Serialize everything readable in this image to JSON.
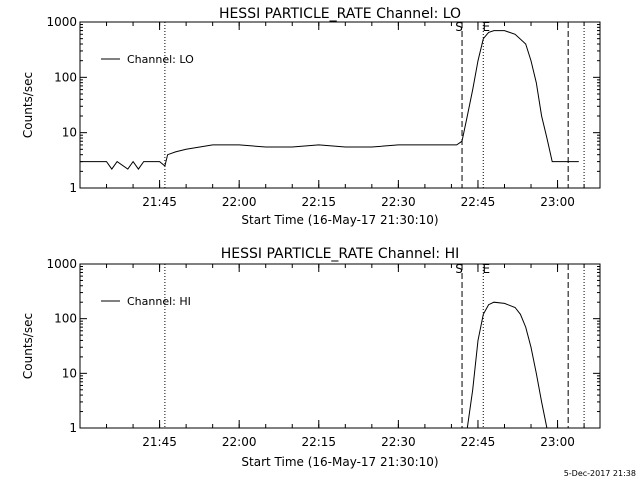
{
  "footer": {
    "stamp": "5-Dec-2017 21:38"
  },
  "chart_data": [
    {
      "type": "line",
      "title": "HESSI PARTICLE_RATE Channel: LO",
      "xlabel": "Start Time (16-May-17 21:30:10)",
      "ylabel": "Counts/sec",
      "yscale": "log",
      "ylim": [
        1,
        1000
      ],
      "yticks": [
        "1",
        "10",
        "100",
        "1000"
      ],
      "xlim": [
        "21:30",
        "23:08"
      ],
      "xticks": [
        "21:45",
        "22:00",
        "22:15",
        "22:30",
        "22:45",
        "23:00"
      ],
      "legend": {
        "entry": "Channel: LO",
        "placement": "top-left"
      },
      "markers": [
        {
          "label": "S",
          "time": "22:42",
          "style": "dashed"
        },
        {
          "label": "E",
          "time": "22:46",
          "style": "dotted"
        },
        {
          "label": "",
          "time": "23:02",
          "style": "dashed"
        },
        {
          "label": "",
          "time": "23:05",
          "style": "dotted"
        }
      ],
      "lines": [
        {
          "time": "21:46",
          "style": "dotted"
        }
      ],
      "series": [
        {
          "x": [
            "21:30",
            "21:33",
            "21:35",
            "21:36",
            "21:37",
            "21:39",
            "21:40",
            "21:41",
            "21:42",
            "21:43",
            "21:44",
            "21:45",
            "21:46",
            "21:46.5",
            "21:48",
            "21:50",
            "21:55",
            "22:00",
            "22:05",
            "22:10",
            "22:15",
            "22:20",
            "22:25",
            "22:30",
            "22:35",
            "22:38",
            "22:40",
            "22:41",
            "22:42",
            "22:43",
            "22:44",
            "22:45",
            "22:46",
            "22:47",
            "22:48",
            "22:50",
            "22:52",
            "22:54",
            "22:55",
            "22:56",
            "22:57",
            "22:58",
            "22:59",
            "23:00",
            "23:01",
            "23:02",
            "23:03",
            "23:04"
          ],
          "y": [
            3,
            3,
            3,
            2.2,
            3,
            2.2,
            3,
            2.2,
            3,
            3,
            3,
            3,
            2.5,
            4,
            4.5,
            5,
            6,
            6,
            5.5,
            5.5,
            6,
            5.5,
            5.5,
            6,
            6,
            6,
            6,
            6,
            7,
            20,
            60,
            200,
            500,
            650,
            700,
            700,
            600,
            400,
            200,
            80,
            20,
            8,
            3,
            3,
            3,
            3,
            3,
            3
          ]
        }
      ]
    },
    {
      "type": "line",
      "title": "HESSI PARTICLE_RATE Channel: HI",
      "xlabel": "Start Time (16-May-17 21:30:10)",
      "ylabel": "Counts/sec",
      "yscale": "log",
      "ylim": [
        1,
        1000
      ],
      "yticks": [
        "1",
        "10",
        "100",
        "1000"
      ],
      "xlim": [
        "21:30",
        "23:08"
      ],
      "xticks": [
        "21:45",
        "22:00",
        "22:15",
        "22:30",
        "22:45",
        "23:00"
      ],
      "legend": {
        "entry": "Channel: HI",
        "placement": "top-left"
      },
      "markers": [
        {
          "label": "S",
          "time": "22:42",
          "style": "dashed"
        },
        {
          "label": "E",
          "time": "22:46",
          "style": "dotted"
        },
        {
          "label": "",
          "time": "23:02",
          "style": "dashed"
        },
        {
          "label": "",
          "time": "23:05",
          "style": "dotted"
        }
      ],
      "lines": [
        {
          "time": "21:46",
          "style": "dotted"
        }
      ],
      "series": [
        {
          "x": [
            "22:43",
            "22:44",
            "22:45",
            "22:46",
            "22:47",
            "22:48",
            "22:50",
            "22:52",
            "22:53",
            "22:54",
            "22:55",
            "22:56",
            "22:57",
            "22:58"
          ],
          "y": [
            1,
            5,
            40,
            120,
            180,
            200,
            190,
            160,
            120,
            70,
            30,
            10,
            3,
            1
          ]
        }
      ]
    }
  ]
}
